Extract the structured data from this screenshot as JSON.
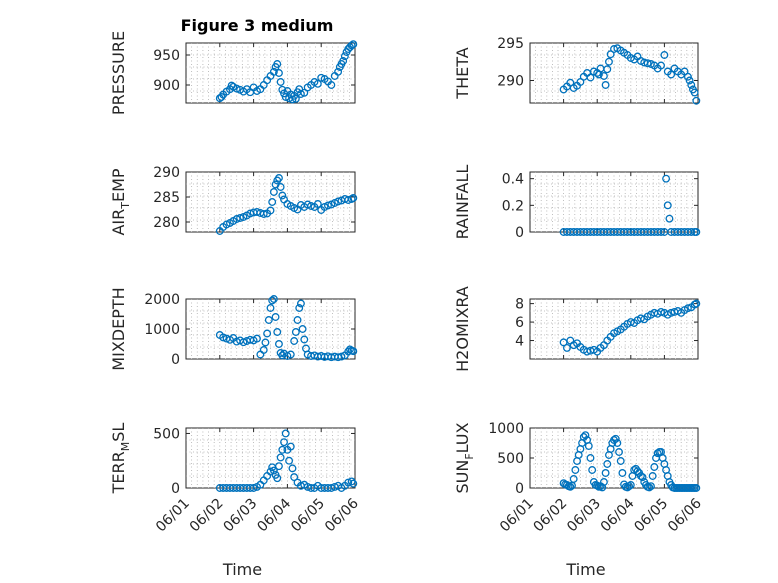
{
  "figure_title": "Figure 3 medium",
  "x_tick_labels": [
    "06/01",
    "06/02",
    "06/03",
    "06/04",
    "06/05",
    "06/06"
  ],
  "xlabel": "Time",
  "marker_color": "#0072bd",
  "chart_data": [
    {
      "type": "scatter",
      "marker": "circle",
      "grid": true,
      "title": "Figure 3 medium",
      "xlabel": "",
      "ylabel": "PRESSURE",
      "xlim": [
        0,
        5
      ],
      "ylim": [
        870,
        970
      ],
      "yticks": [
        900,
        950
      ],
      "x_ticks_shown": false,
      "x": [
        1.0,
        1.05,
        1.1,
        1.2,
        1.3,
        1.35,
        1.4,
        1.5,
        1.6,
        1.7,
        1.8,
        1.9,
        2.0,
        2.1,
        2.2,
        2.3,
        2.4,
        2.5,
        2.6,
        2.65,
        2.7,
        2.75,
        2.8,
        2.85,
        2.9,
        2.95,
        3.0,
        3.05,
        3.1,
        3.15,
        3.2,
        3.25,
        3.3,
        3.35,
        3.4,
        3.5,
        3.6,
        3.7,
        3.8,
        3.9,
        4.0,
        4.1,
        4.2,
        4.3,
        4.4,
        4.5,
        4.55,
        4.6,
        4.65,
        4.7,
        4.75,
        4.8,
        4.85,
        4.9,
        4.95
      ],
      "y": [
        878,
        880,
        884,
        889,
        893,
        899,
        897,
        894,
        892,
        889,
        893,
        888,
        896,
        890,
        893,
        900,
        908,
        915,
        922,
        930,
        935,
        920,
        905,
        892,
        886,
        880,
        890,
        878,
        884,
        876,
        882,
        877,
        888,
        893,
        885,
        887,
        896,
        900,
        905,
        902,
        912,
        910,
        906,
        900,
        915,
        922,
        930,
        935,
        940,
        948,
        955,
        960,
        963,
        966,
        968
      ]
    },
    {
      "type": "scatter",
      "marker": "circle",
      "grid": true,
      "xlabel": "",
      "ylabel": "THETA",
      "xlim": [
        0,
        5
      ],
      "ylim": [
        287,
        295
      ],
      "yticks": [
        290,
        295
      ],
      "x_ticks_shown": false,
      "x": [
        1.0,
        1.1,
        1.2,
        1.3,
        1.4,
        1.5,
        1.6,
        1.7,
        1.8,
        1.9,
        2.0,
        2.05,
        2.1,
        2.2,
        2.25,
        2.3,
        2.35,
        2.4,
        2.5,
        2.6,
        2.7,
        2.8,
        2.9,
        3.0,
        3.1,
        3.2,
        3.3,
        3.4,
        3.5,
        3.6,
        3.7,
        3.8,
        3.9,
        4.0,
        4.1,
        4.2,
        4.3,
        4.4,
        4.5,
        4.6,
        4.7,
        4.75,
        4.8,
        4.85,
        4.9,
        4.95
      ],
      "y": [
        288.8,
        289.2,
        289.7,
        289.0,
        289.3,
        289.8,
        290.5,
        291.0,
        290.4,
        291.2,
        291.0,
        290.8,
        291.6,
        290.6,
        289.4,
        291.5,
        292.5,
        293.5,
        294.2,
        294.3,
        294.0,
        293.7,
        293.4,
        293.0,
        292.8,
        293.2,
        292.6,
        292.4,
        292.3,
        292.2,
        292.0,
        291.6,
        292.0,
        293.4,
        291.2,
        290.8,
        291.6,
        291.2,
        290.8,
        291.2,
        290.5,
        290.0,
        289.4,
        288.8,
        288.4,
        287.3
      ]
    },
    {
      "type": "scatter",
      "marker": "circle",
      "grid": true,
      "xlabel": "",
      "ylabel": "AIR_TEMP",
      "xlim": [
        0,
        5
      ],
      "ylim": [
        278,
        290
      ],
      "yticks": [
        280,
        285,
        290
      ],
      "x_ticks_shown": false,
      "x": [
        1.0,
        1.1,
        1.2,
        1.3,
        1.4,
        1.5,
        1.6,
        1.7,
        1.8,
        1.9,
        2.0,
        2.1,
        2.2,
        2.3,
        2.4,
        2.5,
        2.55,
        2.6,
        2.65,
        2.7,
        2.75,
        2.8,
        2.85,
        2.9,
        3.0,
        3.1,
        3.2,
        3.3,
        3.4,
        3.5,
        3.6,
        3.7,
        3.8,
        3.9,
        4.0,
        4.1,
        4.2,
        4.3,
        4.4,
        4.5,
        4.6,
        4.7,
        4.8,
        4.9,
        4.95
      ],
      "y": [
        278.2,
        279.0,
        279.5,
        279.8,
        280.2,
        280.6,
        280.8,
        281.0,
        281.3,
        281.7,
        281.9,
        282.0,
        281.8,
        281.6,
        281.7,
        282.3,
        284.0,
        286.0,
        287.5,
        288.3,
        288.8,
        287.0,
        285.3,
        284.5,
        283.6,
        283.2,
        282.8,
        282.5,
        283.4,
        283.0,
        283.5,
        283.2,
        283.0,
        283.6,
        282.4,
        283.0,
        283.3,
        283.5,
        283.8,
        284.1,
        284.3,
        284.6,
        284.4,
        284.6,
        284.8
      ]
    },
    {
      "type": "scatter",
      "marker": "circle",
      "grid": true,
      "xlabel": "",
      "ylabel": "RAINFALL",
      "xlim": [
        0,
        5
      ],
      "ylim": [
        0,
        0.45
      ],
      "yticks": [
        0,
        0.2,
        0.4
      ],
      "x_ticks_shown": false,
      "x": [
        1.0,
        1.1,
        1.2,
        1.3,
        1.4,
        1.5,
        1.6,
        1.7,
        1.8,
        1.9,
        2.0,
        2.1,
        2.2,
        2.3,
        2.4,
        2.5,
        2.6,
        2.7,
        2.8,
        2.9,
        3.0,
        3.1,
        3.2,
        3.3,
        3.4,
        3.5,
        3.6,
        3.7,
        3.8,
        3.9,
        4.0,
        4.05,
        4.1,
        4.15,
        4.2,
        4.3,
        4.4,
        4.5,
        4.6,
        4.7,
        4.8,
        4.9,
        4.95
      ],
      "y": [
        0,
        0,
        0,
        0,
        0,
        0,
        0,
        0,
        0,
        0,
        0,
        0,
        0,
        0,
        0,
        0,
        0,
        0,
        0,
        0,
        0,
        0,
        0,
        0,
        0,
        0,
        0,
        0,
        0,
        0,
        0,
        0.4,
        0.2,
        0.1,
        0,
        0,
        0,
        0,
        0,
        0,
        0,
        0,
        0
      ]
    },
    {
      "type": "scatter",
      "marker": "circle",
      "grid": true,
      "xlabel": "",
      "ylabel": "MIXDEPTH",
      "xlim": [
        0,
        5
      ],
      "ylim": [
        0,
        2000
      ],
      "yticks": [
        0,
        1000,
        2000
      ],
      "x_ticks_shown": false,
      "x": [
        1.0,
        1.1,
        1.2,
        1.3,
        1.4,
        1.5,
        1.6,
        1.7,
        1.8,
        1.9,
        2.0,
        2.1,
        2.2,
        2.3,
        2.35,
        2.4,
        2.45,
        2.5,
        2.55,
        2.6,
        2.65,
        2.7,
        2.75,
        2.8,
        2.85,
        2.9,
        3.0,
        3.1,
        3.2,
        3.25,
        3.3,
        3.35,
        3.4,
        3.45,
        3.5,
        3.55,
        3.6,
        3.7,
        3.8,
        3.9,
        4.0,
        4.1,
        4.2,
        4.3,
        4.4,
        4.5,
        4.6,
        4.7,
        4.8,
        4.85,
        4.9,
        4.95
      ],
      "y": [
        800,
        720,
        680,
        640,
        700,
        580,
        620,
        560,
        600,
        640,
        620,
        680,
        150,
        300,
        550,
        850,
        1300,
        1700,
        1950,
        2000,
        1400,
        900,
        500,
        200,
        120,
        180,
        100,
        150,
        600,
        900,
        1300,
        1700,
        1850,
        1000,
        650,
        350,
        150,
        100,
        120,
        80,
        100,
        70,
        90,
        60,
        80,
        60,
        80,
        120,
        250,
        320,
        280,
        260
      ]
    },
    {
      "type": "scatter",
      "marker": "circle",
      "grid": true,
      "xlabel": "",
      "ylabel": "H2OMIXRA",
      "xlim": [
        0,
        5
      ],
      "ylim": [
        2,
        8.5
      ],
      "yticks": [
        4,
        6,
        8
      ],
      "x_ticks_shown": false,
      "x": [
        1.0,
        1.1,
        1.2,
        1.3,
        1.4,
        1.5,
        1.6,
        1.7,
        1.8,
        1.9,
        2.0,
        2.1,
        2.2,
        2.3,
        2.4,
        2.5,
        2.6,
        2.7,
        2.8,
        2.9,
        3.0,
        3.1,
        3.2,
        3.3,
        3.4,
        3.5,
        3.6,
        3.7,
        3.8,
        3.9,
        4.0,
        4.1,
        4.2,
        4.3,
        4.4,
        4.5,
        4.6,
        4.7,
        4.8,
        4.9,
        4.95
      ],
      "y": [
        3.8,
        3.2,
        4.0,
        3.5,
        3.7,
        3.3,
        3.0,
        2.8,
        2.9,
        3.0,
        2.8,
        3.2,
        3.5,
        4.0,
        4.4,
        4.8,
        5.0,
        5.2,
        5.5,
        5.8,
        6.0,
        5.9,
        6.2,
        6.4,
        6.3,
        6.6,
        6.8,
        7.0,
        6.9,
        7.1,
        7.0,
        6.8,
        7.0,
        7.1,
        7.2,
        7.0,
        7.3,
        7.5,
        7.6,
        7.9,
        8.0
      ]
    },
    {
      "type": "scatter",
      "marker": "circle",
      "grid": true,
      "xlabel": "Time",
      "ylabel": "TERR_MSL",
      "xlim": [
        0,
        5
      ],
      "ylim": [
        0,
        550
      ],
      "yticks": [
        0,
        500
      ],
      "x_ticks_shown": true,
      "x": [
        1.0,
        1.1,
        1.2,
        1.3,
        1.4,
        1.5,
        1.6,
        1.7,
        1.8,
        1.9,
        2.0,
        2.1,
        2.2,
        2.3,
        2.4,
        2.5,
        2.55,
        2.6,
        2.65,
        2.7,
        2.75,
        2.8,
        2.85,
        2.9,
        2.95,
        3.0,
        3.05,
        3.1,
        3.15,
        3.2,
        3.3,
        3.4,
        3.5,
        3.6,
        3.7,
        3.8,
        3.9,
        4.0,
        4.1,
        4.2,
        4.3,
        4.4,
        4.5,
        4.6,
        4.7,
        4.8,
        4.9,
        4.95
      ],
      "y": [
        0,
        0,
        0,
        0,
        0,
        0,
        0,
        0,
        0,
        0,
        0,
        10,
        30,
        70,
        110,
        150,
        190,
        160,
        120,
        90,
        200,
        280,
        350,
        420,
        500,
        350,
        250,
        380,
        180,
        100,
        50,
        20,
        30,
        10,
        0,
        0,
        20,
        0,
        0,
        0,
        0,
        10,
        20,
        0,
        20,
        50,
        60,
        40
      ]
    },
    {
      "type": "scatter",
      "marker": "circle",
      "grid": true,
      "xlabel": "Time",
      "ylabel": "SUN_FLUX",
      "xlim": [
        0,
        5
      ],
      "ylim": [
        0,
        1000
      ],
      "yticks": [
        0,
        500,
        1000
      ],
      "x_ticks_shown": true,
      "x": [
        1.0,
        1.05,
        1.1,
        1.15,
        1.2,
        1.25,
        1.3,
        1.35,
        1.4,
        1.45,
        1.5,
        1.55,
        1.6,
        1.65,
        1.7,
        1.75,
        1.8,
        1.85,
        1.9,
        1.95,
        2.0,
        2.05,
        2.1,
        2.15,
        2.2,
        2.25,
        2.3,
        2.35,
        2.4,
        2.45,
        2.5,
        2.55,
        2.6,
        2.65,
        2.7,
        2.75,
        2.8,
        2.85,
        2.9,
        2.95,
        3.0,
        3.05,
        3.1,
        3.15,
        3.2,
        3.25,
        3.3,
        3.35,
        3.4,
        3.45,
        3.5,
        3.55,
        3.6,
        3.65,
        3.7,
        3.75,
        3.8,
        3.85,
        3.9,
        3.95,
        4.0,
        4.05,
        4.1,
        4.15,
        4.2,
        4.25,
        4.3,
        4.35,
        4.4,
        4.45,
        4.5,
        4.55,
        4.6,
        4.65,
        4.7,
        4.75,
        4.8,
        4.85,
        4.9,
        4.95
      ],
      "y": [
        80,
        60,
        50,
        30,
        20,
        40,
        150,
        300,
        450,
        550,
        650,
        750,
        850,
        880,
        800,
        700,
        500,
        300,
        100,
        50,
        40,
        20,
        30,
        10,
        100,
        250,
        400,
        550,
        650,
        750,
        800,
        820,
        750,
        600,
        450,
        250,
        60,
        20,
        10,
        30,
        50,
        200,
        300,
        320,
        280,
        250,
        200,
        180,
        100,
        50,
        20,
        10,
        30,
        200,
        350,
        500,
        580,
        600,
        600,
        500,
        400,
        300,
        200,
        100,
        50,
        10,
        0,
        0,
        0,
        0,
        0,
        0,
        0,
        0,
        0,
        0,
        0,
        0,
        0,
        0
      ]
    }
  ]
}
